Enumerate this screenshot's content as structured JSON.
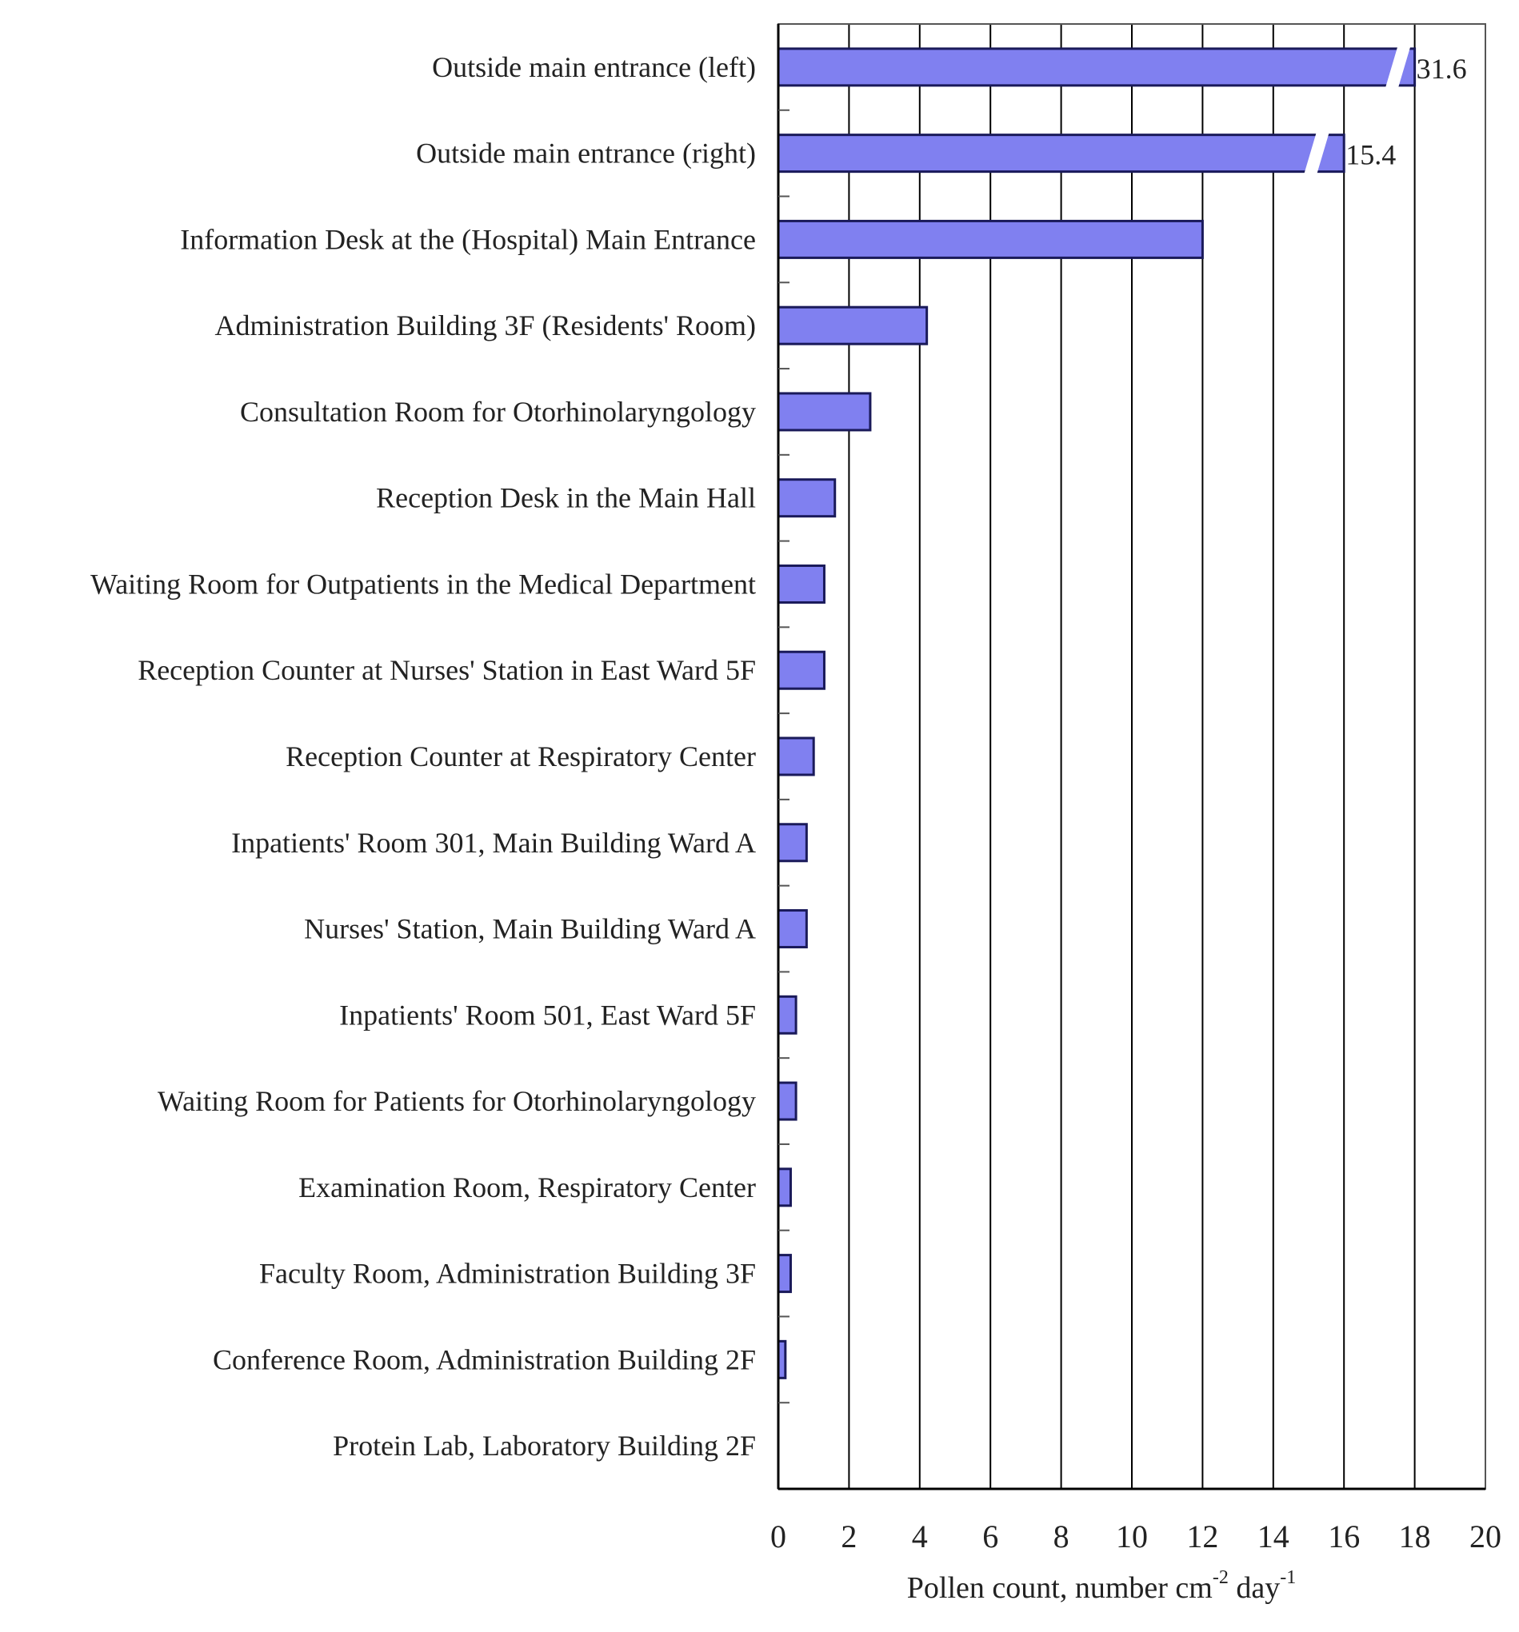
{
  "chart_data": {
    "type": "bar",
    "orientation": "horizontal",
    "categories": [
      "Outside main entrance (left)",
      "Outside main entrance (right)",
      "Information Desk at the (Hospital) Main Entrance",
      "Administration Building 3F (Residents' Room)",
      "Consultation Room for Otorhinolaryngology",
      "Reception Desk in the Main Hall",
      "Waiting Room for Outpatients in the Medical Department",
      "Reception Counter at Nurses' Station in East Ward 5F",
      "Reception Counter at Respiratory Center",
      "Inpatients' Room 301, Main Building Ward A",
      "Nurses' Station, Main Building Ward A",
      "Inpatients' Room 501, East Ward 5F",
      "Waiting Room for Patients for Otorhinolaryngology",
      "Examination Room, Respiratory Center",
      "Faculty Room, Administration Building 3F",
      "Conference Room, Administration Building 2F",
      "Protein Lab, Laboratory Building 2F"
    ],
    "values": [
      31.6,
      15.4,
      12.0,
      4.2,
      2.6,
      1.6,
      1.3,
      1.3,
      1.0,
      0.8,
      0.8,
      0.5,
      0.5,
      0.35,
      0.35,
      0.2,
      0.0
    ],
    "data_labels": [
      "31.6",
      "15.4",
      "",
      "",
      "",
      "",
      "",
      "",
      "",
      "",
      "",
      "",
      "",
      "",
      "",
      "",
      ""
    ],
    "broken_bars": [
      0,
      1
    ],
    "xlim": [
      0,
      20
    ],
    "x_ticks": [
      "0",
      "2",
      "4",
      "6",
      "8",
      "10",
      "12",
      "14",
      "16",
      "18",
      "20"
    ],
    "xlabel": "Pollen count, number cm",
    "xlabel_exp1": "-2",
    "xlabel_mid": " day",
    "xlabel_exp2": "-1",
    "grid": "vertical",
    "bar_color": "#8080f0",
    "bar_edge_color": "#1a1a5a",
    "title": ""
  }
}
